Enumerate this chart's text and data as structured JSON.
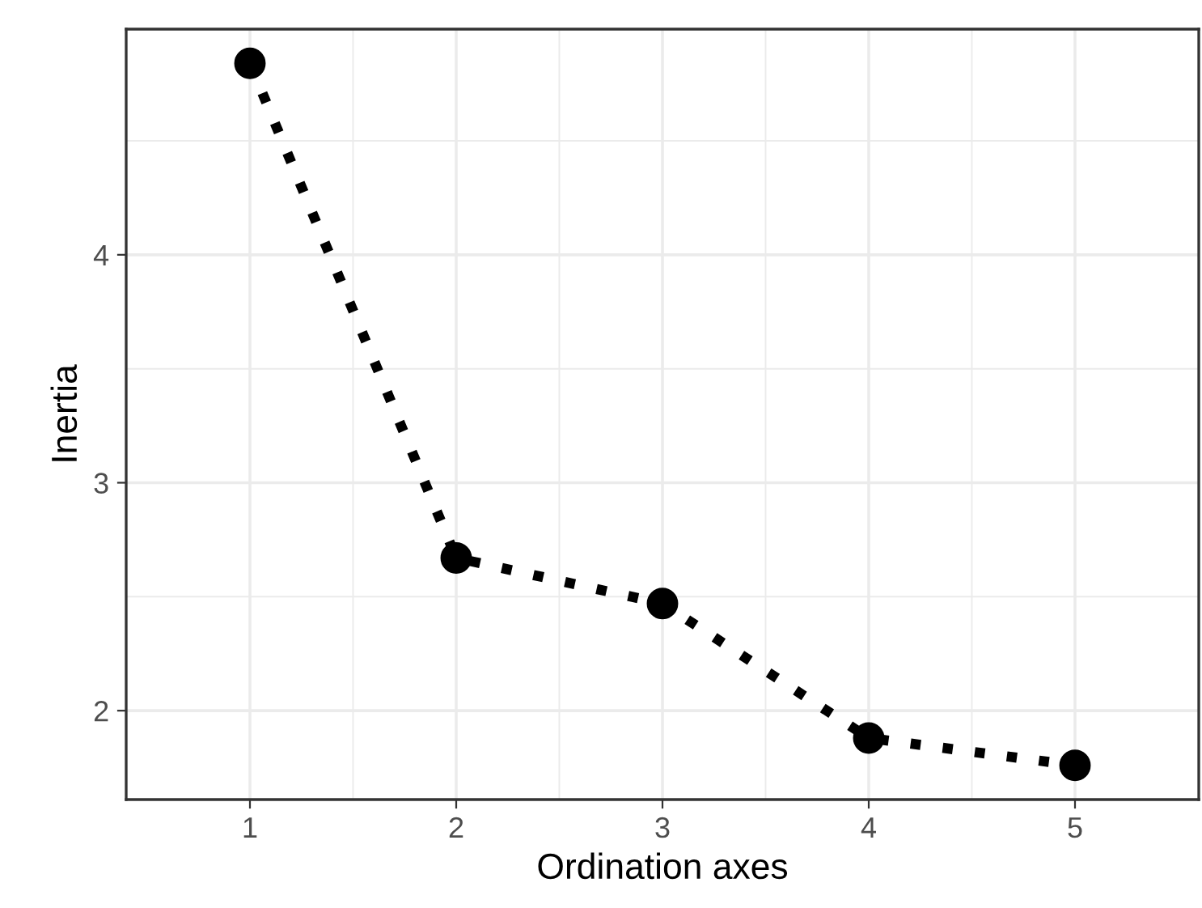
{
  "chart_data": {
    "type": "line",
    "xlabel": "Ordination axes",
    "ylabel": "Inertia",
    "x": [
      1,
      2,
      3,
      4,
      5
    ],
    "series": [
      {
        "color": "#000000",
        "values": [
          4.84,
          2.67,
          2.47,
          1.88,
          1.76
        ]
      }
    ],
    "xlim": [
      0.4,
      5.6
    ],
    "ylim": [
      1.61,
      4.99
    ],
    "xticks": [
      1,
      2,
      3,
      4,
      5
    ],
    "yticks": [
      2,
      3,
      4
    ],
    "grid": true,
    "marker": "circle",
    "line_style": "dotted"
  }
}
